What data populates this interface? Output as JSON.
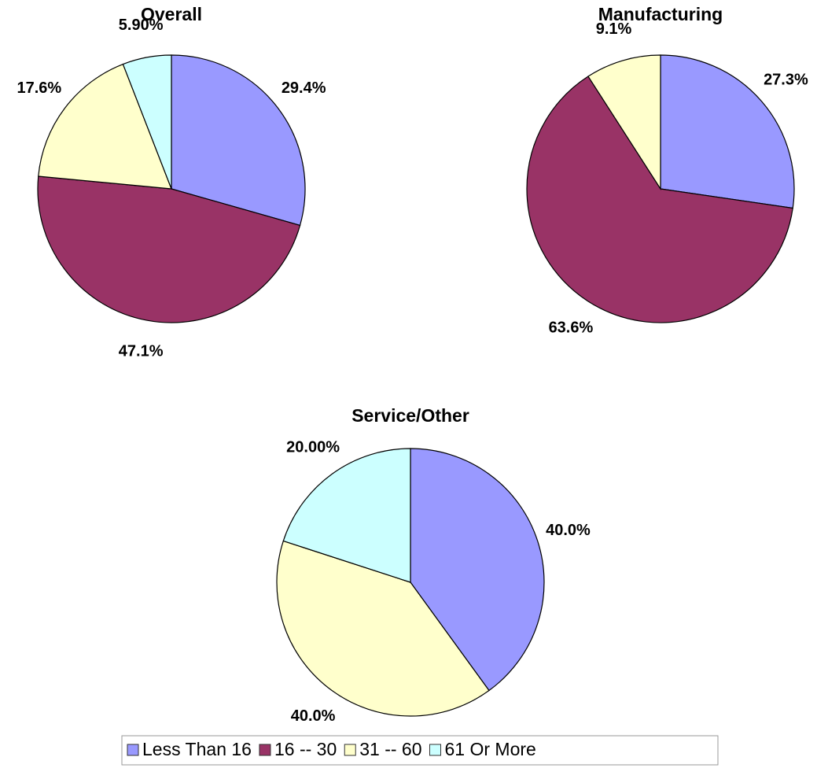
{
  "chart_data": [
    {
      "type": "pie",
      "title": "Overall",
      "values": [
        29.4,
        47.1,
        17.6,
        5.9
      ],
      "value_labels": [
        "29.4%",
        "47.1%",
        "17.6%",
        "5.90%"
      ]
    },
    {
      "type": "pie",
      "title": "Manufacturing",
      "values": [
        27.3,
        63.6,
        9.1,
        null
      ],
      "value_labels": [
        "27.3%",
        "63.6%",
        "9.1%",
        null
      ]
    },
    {
      "type": "pie",
      "title": "Service/Other",
      "values": [
        40,
        null,
        40,
        20
      ],
      "value_labels": [
        "40.0%",
        null,
        "40.0%",
        "20.00%"
      ]
    }
  ],
  "legend": {
    "categories": [
      "Less Than 16",
      "16 -- 30",
      "31 -- 60",
      "61 Or More"
    ],
    "colors": [
      "#9999ff",
      "#993366",
      "#ffffcc",
      "#ccffff"
    ]
  }
}
